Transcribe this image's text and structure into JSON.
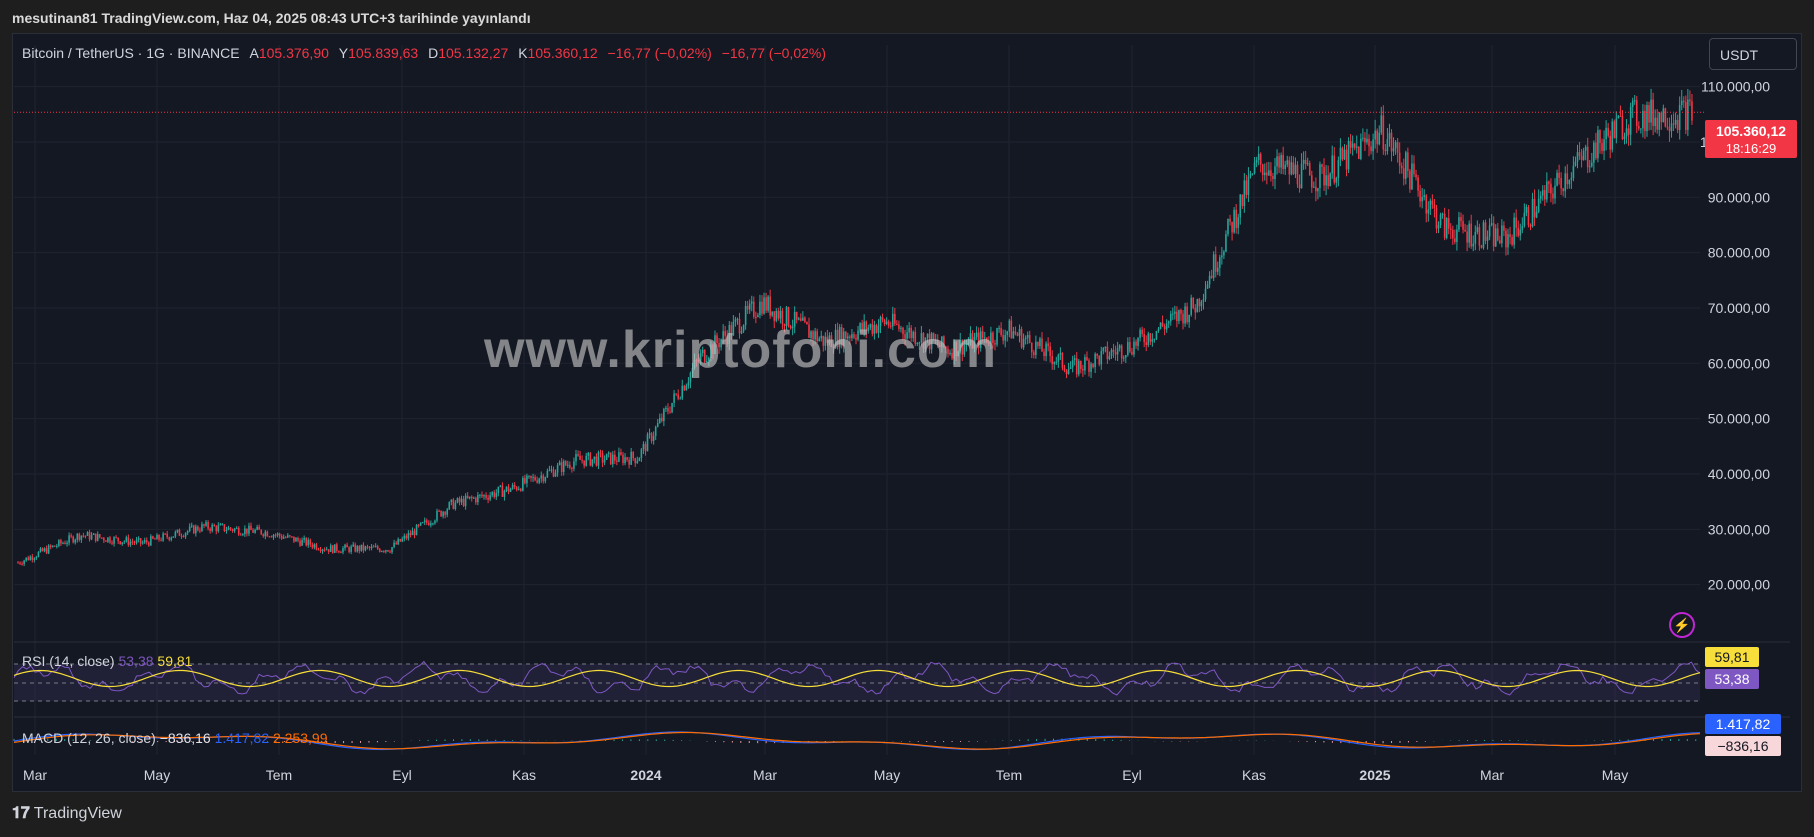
{
  "caption": "mesutinan81 TradingView.com, Haz 04, 2025 08:43 UTC+3 tarihinde yayınlandı",
  "symbol": "Bitcoin / TetherUS · 1G · BINANCE",
  "ohlc": {
    "o_label": "A",
    "o": "105.376,90",
    "h_label": "Y",
    "h": "105.839,63",
    "l_label": "D",
    "l": "105.132,27",
    "c_label": "K",
    "c": "105.360,12",
    "change": "−16,77 (−0,02%)",
    "change2": "−16,77 (−0,02%)"
  },
  "currency": "USDT",
  "last_price": "105.360,12",
  "countdown": "18:16:29",
  "watermark": "www.kriptofoni.com",
  "rsi": {
    "label": "RSI (14, close)",
    "value": "53,38",
    "ma": "59,81"
  },
  "macd": {
    "label": "MACD (12, 26, close)",
    "hist": "−836,16",
    "macd": "1.417,82",
    "signal": "2.253,99",
    "tag_macd": "1.417,82",
    "tag_hist": "−836,16"
  },
  "footer": "TradingView",
  "colors": {
    "up": "#26a69a",
    "down": "#f23645",
    "rsi": "#7e57c2",
    "rsi_ma": "#f7de3a",
    "macd": "#2962ff",
    "signal": "#ff6d00"
  },
  "chart_data": {
    "type": "line",
    "title": "Bitcoin / TetherUS · 1G · BINANCE",
    "xlabel": "",
    "ylabel": "",
    "x_ticks": [
      "Mar",
      "May",
      "Tem",
      "Eyl",
      "Kas",
      "2024",
      "Mar",
      "May",
      "Tem",
      "Eyl",
      "Kas",
      "2025",
      "Mar",
      "May"
    ],
    "y_ticks": [
      "110.000,00",
      "100.000,00",
      "90.000,00",
      "80.000,00",
      "70.000,00",
      "60.000,00",
      "50.000,00",
      "40.000,00",
      "30.000,00",
      "20.000,00"
    ],
    "ylim": [
      10000,
      113000
    ],
    "x": [
      "2023-03",
      "2023-04",
      "2023-05",
      "2023-06",
      "2023-07",
      "2023-08",
      "2023-09",
      "2023-10",
      "2023-11",
      "2023-12",
      "2024-01",
      "2024-02",
      "2024-03",
      "2024-04",
      "2024-05",
      "2024-06",
      "2024-07",
      "2024-08",
      "2024-09",
      "2024-10",
      "2024-11",
      "2024-12",
      "2025-01",
      "2025-02",
      "2025-03",
      "2025-04",
      "2025-05",
      "2025-06"
    ],
    "series": [
      {
        "values": [
          24000,
          29000,
          27500,
          30500,
          29500,
          26500,
          26500,
          34500,
          37500,
          42500,
          43000,
          61000,
          71000,
          64000,
          67500,
          62500,
          66000,
          59000,
          63500,
          70500,
          96000,
          93500,
          102000,
          84500,
          82500,
          94500,
          104500,
          105360
        ]
      }
    ],
    "rsi": {
      "ylim": [
        0,
        100
      ],
      "bands": [
        70,
        50,
        30
      ]
    },
    "grid": true,
    "legend": "top-left"
  }
}
